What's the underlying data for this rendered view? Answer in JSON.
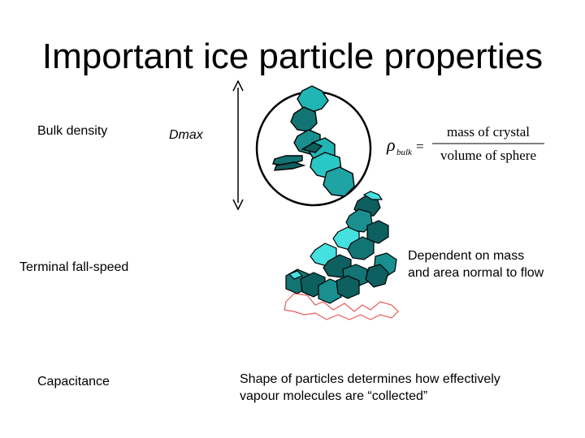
{
  "slide": {
    "title": "Important ice particle properties",
    "properties": [
      {
        "label": "Bulk density"
      },
      {
        "label": "Terminal fall-speed"
      },
      {
        "label": "Capacitance"
      }
    ],
    "dmax_label": "Dmax",
    "equation": {
      "symbol": "ρ",
      "subscript": "bulk",
      "equals": "=",
      "numerator": "mass of crystal",
      "denominator": "volume of sphere"
    },
    "fall_speed_note": [
      "Dependent on mass",
      "and area normal to flow"
    ],
    "capacitance_note": [
      "Shape of particles determines how effectively",
      "vapour molecules are “collected”"
    ]
  },
  "colors": {
    "crystal_fill": "#1fa3a3",
    "crystal_dark": "#0d5f60",
    "crystal_light": "#45e0e0",
    "outline_red": "#e85b5b"
  },
  "icons": {
    "arrow": "double-headed-vertical-arrow",
    "circle": "enclosing-sphere",
    "crystal1": "rosette-ice-crystal",
    "crystal2": "aggregate-ice-crystal",
    "projection": "projected-area-outline"
  }
}
